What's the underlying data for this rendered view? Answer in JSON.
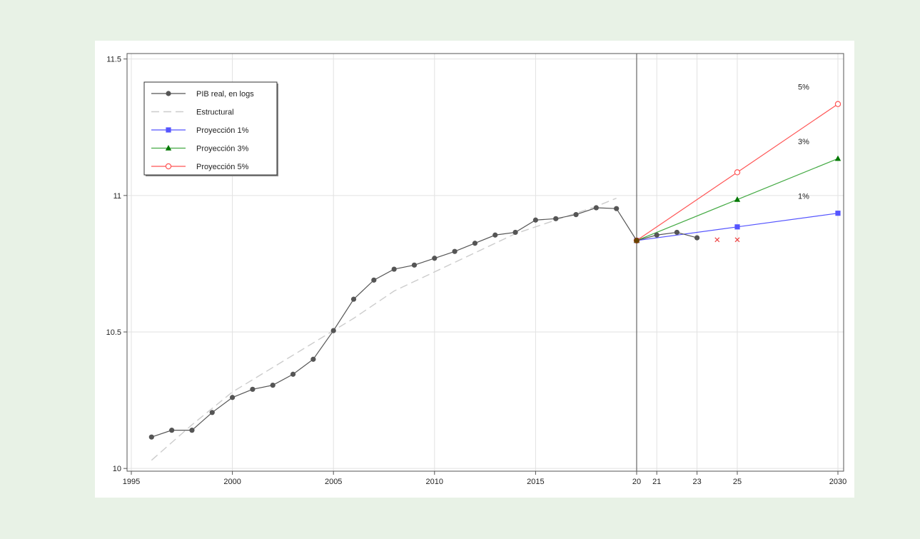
{
  "chart_data": {
    "type": "line",
    "title": "",
    "xlabel": "",
    "ylabel": "",
    "ylim": [
      9.99,
      11.52
    ],
    "y_ticks": [
      "10",
      "10.5",
      "11",
      "11.5"
    ],
    "x_ticks": [
      "1995",
      "2000",
      "2005",
      "2010",
      "2015",
      "20",
      "21",
      "23",
      "25",
      "2030"
    ],
    "grid": true,
    "legend_position": "top-left",
    "reference_line_x": 2020,
    "series": [
      {
        "name": "PIB real, en logs",
        "color": "#555555",
        "marker": "circle",
        "x": [
          1996,
          1997,
          1998,
          1999,
          2000,
          2001,
          2002,
          2003,
          2004,
          2005,
          2006,
          2007,
          2008,
          2009,
          2010,
          2011,
          2012,
          2013,
          2014,
          2015,
          2016,
          2017,
          2018,
          2019,
          2020,
          2021,
          2022,
          2023
        ],
        "values": [
          10.115,
          10.14,
          10.14,
          10.205,
          10.26,
          10.29,
          10.305,
          10.345,
          10.4,
          10.505,
          10.62,
          10.69,
          10.73,
          10.745,
          10.77,
          10.795,
          10.825,
          10.855,
          10.865,
          10.91,
          10.915,
          10.93,
          10.955,
          10.952,
          10.835,
          10.855,
          10.865,
          10.845
        ]
      },
      {
        "name": "Estructural",
        "color": "#cccccc",
        "dashed": true,
        "x": [
          1996,
          1998,
          2000,
          2002,
          2004,
          2006,
          2008,
          2010,
          2012,
          2014,
          2016,
          2018,
          2019
        ],
        "values": [
          10.03,
          10.16,
          10.28,
          10.37,
          10.46,
          10.55,
          10.65,
          10.72,
          10.79,
          10.86,
          10.91,
          10.96,
          10.99
        ]
      },
      {
        "name": "Proyección 1%",
        "color": "#5555ff",
        "marker": "square",
        "end_label": "1%",
        "x": [
          2020,
          2025,
          2030
        ],
        "values": [
          10.835,
          10.885,
          10.935
        ]
      },
      {
        "name": "Proyección 3%",
        "color": "#44aa44",
        "marker_color": "#007700",
        "marker": "triangle",
        "end_label": "3%",
        "x": [
          2020,
          2025,
          2030
        ],
        "values": [
          10.835,
          10.985,
          11.135
        ]
      },
      {
        "name": "Proyección 5%",
        "color": "#ff5555",
        "marker": "hollow-circle",
        "end_label": "5%",
        "x": [
          2020,
          2025,
          2030
        ],
        "values": [
          10.835,
          11.085,
          11.335
        ]
      },
      {
        "name": "",
        "color": "#ee4444",
        "marker": "cross",
        "x": [
          2024,
          2025
        ],
        "values": [
          10.838,
          10.838
        ]
      }
    ]
  }
}
